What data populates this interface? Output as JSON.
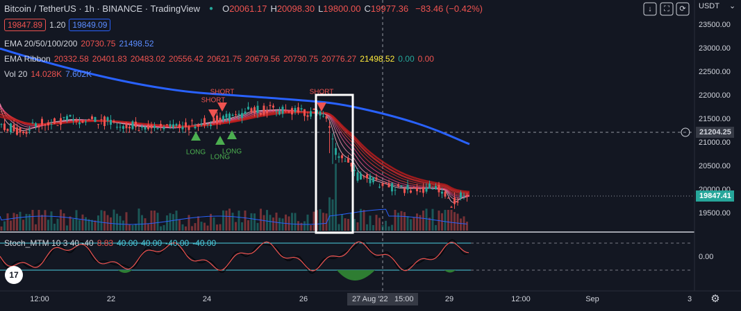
{
  "header": {
    "title": "Bitcoin / TetherUS · 1h · BINANCE · TradingView",
    "ohlc": [
      {
        "key": "O",
        "value": "20061.17"
      },
      {
        "key": "H",
        "value": "20098.30"
      },
      {
        "key": "L",
        "value": "19800.00"
      },
      {
        "key": "C",
        "value": "19977.36"
      }
    ],
    "change": "−83.46 (−0.42%)"
  },
  "order": {
    "sell": "19847.89",
    "spread": "1.20",
    "buy": "19849.09"
  },
  "indicators": [
    {
      "name": "EMA 20/50/100/200",
      "values": [
        "20730.75",
        "21498.52"
      ]
    },
    {
      "name": "EMA Ribbon",
      "values": [
        "20332.58",
        "20401.83",
        "20483.02",
        "20556.42",
        "20621.75",
        "20679.56",
        "20730.75",
        "20776.27",
        "21498.52",
        "0.00",
        "0.00"
      ]
    },
    {
      "name": "Vol 20",
      "values": [
        "14.028K",
        "7.602K"
      ]
    }
  ],
  "oscillator": {
    "name": "Stoch_MTM 10 3 40 -40",
    "values": [
      "8.83",
      "40.00",
      "40.00",
      "-40.00",
      "-40.00"
    ]
  },
  "markers": [
    {
      "label": "SHORT"
    },
    {
      "label": "SHORT"
    },
    {
      "label": "SHORT"
    },
    {
      "label": "LONG"
    },
    {
      "label": "LONG"
    },
    {
      "label": "LONG"
    }
  ],
  "price_axis": {
    "currency": "USDT",
    "ticks": [
      "23500.00",
      "23000.00",
      "22500.00",
      "22000.00",
      "21500.00",
      "21000.00",
      "20500.00",
      "20000.00",
      "19500.00"
    ],
    "crosshair": "21204.25",
    "last": "19847.41"
  },
  "osc_axis": {
    "ticks": [
      "0.00"
    ]
  },
  "time_axis": {
    "ticks": [
      "12:00",
      "22",
      "24",
      "26",
      "29",
      "12:00",
      "Sep",
      "3"
    ],
    "crosshair_date": "27 Aug '22",
    "crosshair_time": "15:00"
  }
}
